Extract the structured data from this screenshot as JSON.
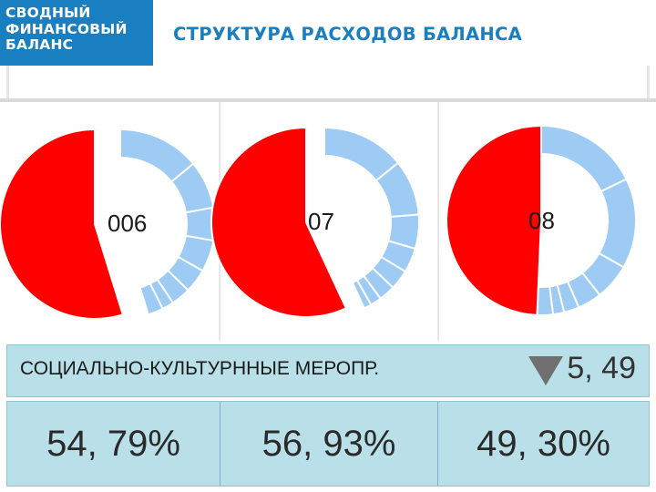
{
  "header": {
    "logo_lines": [
      "СВОДНЫЙ",
      "ФИНАНСОВЫЙ",
      "БАЛАНС"
    ],
    "title": "СТРУКТУРА РАСХОДОВ БАЛАНСА"
  },
  "colors": {
    "brand_blue": "#1a7fc1",
    "highlight_red": "#ff0000",
    "segment_blue": "#9ecbf3",
    "band_fill": "#b9dfe8"
  },
  "chart_data": [
    {
      "type": "pie",
      "center_label": "006",
      "highlight_value": 54.79,
      "other_segments": [
        14.0,
        8.2,
        5.6,
        5.4,
        4.1,
        3.3,
        2.0,
        2.61
      ]
    },
    {
      "type": "pie",
      "center_label": "07",
      "highlight_value": 56.93,
      "other_segments": [
        14.2,
        9.5,
        5.8,
        4.2,
        3.4,
        2.8,
        1.9,
        1.27
      ]
    },
    {
      "type": "pie",
      "center_label": "08",
      "highlight_value": 49.3,
      "other_segments": [
        17.8,
        15.4,
        6.2,
        4.1,
        2.6,
        1.9,
        2.7
      ]
    }
  ],
  "summary": {
    "category_label": "СОЦИАЛЬНО-КУЛЬТУРННЫЕ МЕРОПР.",
    "trend_icon": "down-triangle-icon",
    "change_value": "5, 49"
  },
  "shares": [
    "54, 79%",
    "56, 93%",
    "49, 30%"
  ]
}
